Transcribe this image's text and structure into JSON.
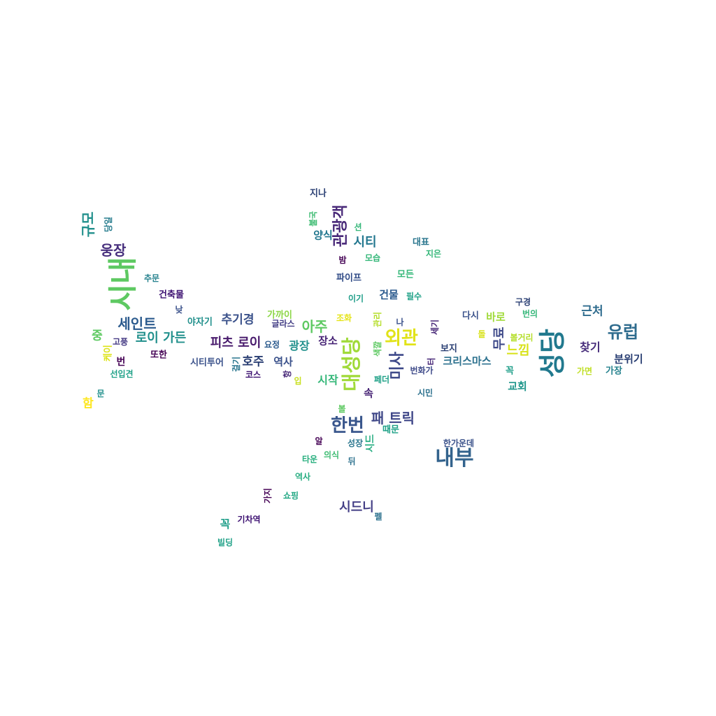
{
  "words": [
    {
      "text": "지나",
      "color": "#2a3f73",
      "rotated": false
    },
    {
      "text": "불국",
      "color": "#3fbc73",
      "rotated": true
    },
    {
      "text": "관광객",
      "color": "#482878",
      "rotated": true
    },
    {
      "text": "션",
      "color": "#35b779",
      "rotated": false
    },
    {
      "text": "양식",
      "color": "#21768e",
      "rotated": false
    },
    {
      "text": "시티",
      "color": "#21768e",
      "rotated": false
    },
    {
      "text": "대표",
      "color": "#2a768e",
      "rotated": false
    },
    {
      "text": "지은",
      "color": "#35b779",
      "rotated": false
    },
    {
      "text": "밤",
      "color": "#440154",
      "rotated": false
    },
    {
      "text": "모습",
      "color": "#35b779",
      "rotated": false
    },
    {
      "text": "모든",
      "color": "#35b779",
      "rotated": false
    },
    {
      "text": "파이프",
      "color": "#2f4a86",
      "rotated": false
    },
    {
      "text": "이기",
      "color": "#1f9e89",
      "rotated": false
    },
    {
      "text": "건물",
      "color": "#2c5b8e",
      "rotated": false
    },
    {
      "text": "필수",
      "color": "#1fa187",
      "rotated": false
    },
    {
      "text": "규모",
      "color": "#21908c",
      "rotated": true
    },
    {
      "text": "당일",
      "color": "#287d8e",
      "rotated": true
    },
    {
      "text": "웅장",
      "color": "#472f7d",
      "rotated": false
    },
    {
      "text": "시내",
      "color": "#5ec962",
      "rotated": true
    },
    {
      "text": "추문",
      "color": "#26828e",
      "rotated": false
    },
    {
      "text": "건축물",
      "color": "#3b0f70",
      "rotated": false
    },
    {
      "text": "낮",
      "color": "#3b528b",
      "rotated": false
    },
    {
      "text": "야자기",
      "color": "#21908c",
      "rotated": false
    },
    {
      "text": "추기경",
      "color": "#3b528b",
      "rotated": false
    },
    {
      "text": "가까이",
      "color": "#8bd646",
      "rotated": false
    },
    {
      "text": "글라스",
      "color": "#433e85",
      "rotated": false
    },
    {
      "text": "아주",
      "color": "#5ec962",
      "rotated": false
    },
    {
      "text": "조화",
      "color": "#e5e419",
      "rotated": false
    },
    {
      "text": "관리",
      "color": "#b5de2b",
      "rotated": true
    },
    {
      "text": "나",
      "color": "#3b528b",
      "rotated": false
    },
    {
      "text": "세기",
      "color": "#482878",
      "rotated": true
    },
    {
      "text": "다시",
      "color": "#3b528b",
      "rotated": false
    },
    {
      "text": "바로",
      "color": "#a0da39",
      "rotated": false
    },
    {
      "text": "구경",
      "color": "#2a3f73",
      "rotated": false
    },
    {
      "text": "번의",
      "color": "#35b779",
      "rotated": false
    },
    {
      "text": "근처",
      "color": "#2f6c8e",
      "rotated": false
    },
    {
      "text": "세인트",
      "color": "#2c5b8e",
      "rotated": false
    },
    {
      "text": "중",
      "color": "#5ec962",
      "rotated": false
    },
    {
      "text": "로이 가든",
      "color": "#21908c",
      "rotated": false
    },
    {
      "text": "고풍",
      "color": "#443983",
      "rotated": false
    },
    {
      "text": "케이",
      "color": "#dde318",
      "rotated": true
    },
    {
      "text": "번",
      "color": "#440154",
      "rotated": false
    },
    {
      "text": "또한",
      "color": "#440154",
      "rotated": false
    },
    {
      "text": "피츠 로이",
      "color": "#481a6c",
      "rotated": false
    },
    {
      "text": "요정",
      "color": "#2c5b8e",
      "rotated": false
    },
    {
      "text": "광장",
      "color": "#21908c",
      "rotated": false
    },
    {
      "text": "장소",
      "color": "#482576",
      "rotated": false
    },
    {
      "text": "대성당",
      "color": "#a0da39",
      "rotated": true
    },
    {
      "text": "외관",
      "color": "#e1e319",
      "rotated": false
    },
    {
      "text": "색깔",
      "color": "#5ec962",
      "rotated": true
    },
    {
      "text": "미사",
      "color": "#3e4989",
      "rotated": true
    },
    {
      "text": "보지",
      "color": "#2a3f73",
      "rotated": false
    },
    {
      "text": "돌",
      "color": "#d8e219",
      "rotated": false
    },
    {
      "text": "무료",
      "color": "#3e4989",
      "rotated": true
    },
    {
      "text": "볼거리",
      "color": "#b5de2b",
      "rotated": false
    },
    {
      "text": "느낌",
      "color": "#d8e219",
      "rotated": false
    },
    {
      "text": "성당",
      "color": "#21798e",
      "rotated": true
    },
    {
      "text": "찾기",
      "color": "#472d7b",
      "rotated": false
    },
    {
      "text": "유럽",
      "color": "#2f6c8e",
      "rotated": false
    },
    {
      "text": "분위기",
      "color": "#2a3f73",
      "rotated": false
    },
    {
      "text": "시티투어",
      "color": "#3b528b",
      "rotated": false
    },
    {
      "text": "걸기",
      "color": "#2a768e",
      "rotated": true
    },
    {
      "text": "호주",
      "color": "#2a3f73",
      "rotated": false
    },
    {
      "text": "역사",
      "color": "#3b528b",
      "rotated": false
    },
    {
      "text": "코스",
      "color": "#3b0f70",
      "rotated": false
    },
    {
      "text": "항",
      "color": "#482878",
      "rotated": true
    },
    {
      "text": "입",
      "color": "#c8e020",
      "rotated": false
    },
    {
      "text": "시작",
      "color": "#35b779",
      "rotated": false
    },
    {
      "text": "페더",
      "color": "#1fa187",
      "rotated": false
    },
    {
      "text": "번화가",
      "color": "#3e4a89",
      "rotated": false
    },
    {
      "text": "터",
      "color": "#482878",
      "rotated": true
    },
    {
      "text": "크리스마스",
      "color": "#2c718e",
      "rotated": false
    },
    {
      "text": "꼭",
      "color": "#1f9e89",
      "rotated": false
    },
    {
      "text": "가면",
      "color": "#c0df25",
      "rotated": false
    },
    {
      "text": "가장",
      "color": "#26828e",
      "rotated": false
    },
    {
      "text": "교회",
      "color": "#1f968b",
      "rotated": false
    },
    {
      "text": "선입견",
      "color": "#1fa187",
      "rotated": false
    },
    {
      "text": "문",
      "color": "#21908c",
      "rotated": false
    },
    {
      "text": "함",
      "color": "#fde725",
      "rotated": false
    },
    {
      "text": "속",
      "color": "#482576",
      "rotated": false
    },
    {
      "text": "시민",
      "color": "#2c718e",
      "rotated": false
    },
    {
      "text": "볼",
      "color": "#5ec962",
      "rotated": false
    },
    {
      "text": "한번",
      "color": "#39568c",
      "rotated": false
    },
    {
      "text": "패 트릭",
      "color": "#3f4788",
      "rotated": false
    },
    {
      "text": "때문",
      "color": "#1fa187",
      "rotated": false
    },
    {
      "text": "알",
      "color": "#440154",
      "rotated": false
    },
    {
      "text": "성장",
      "color": "#2a768e",
      "rotated": false
    },
    {
      "text": "시드",
      "color": "#26ad81",
      "rotated": true
    },
    {
      "text": "한가운데",
      "color": "#3b528b",
      "rotated": false
    },
    {
      "text": "내부",
      "color": "#33638d",
      "rotated": false
    },
    {
      "text": "의식",
      "color": "#3fbc73",
      "rotated": false
    },
    {
      "text": "타운",
      "color": "#29af7f",
      "rotated": false
    },
    {
      "text": "뒤",
      "color": "#2c718e",
      "rotated": false
    },
    {
      "text": "역사",
      "color": "#26ad81",
      "rotated": false
    },
    {
      "text": "가지",
      "color": "#440154",
      "rotated": true
    },
    {
      "text": "쇼핑",
      "color": "#22a884",
      "rotated": false
    },
    {
      "text": "시드니",
      "color": "#433e85",
      "rotated": false
    },
    {
      "text": "펠",
      "color": "#2c718e",
      "rotated": false
    },
    {
      "text": "기차역",
      "color": "#3b0f70",
      "rotated": false
    },
    {
      "text": "꼭",
      "color": "#1f9e89",
      "rotated": false
    },
    {
      "text": "빌딩",
      "color": "#1fa187",
      "rotated": false
    }
  ]
}
